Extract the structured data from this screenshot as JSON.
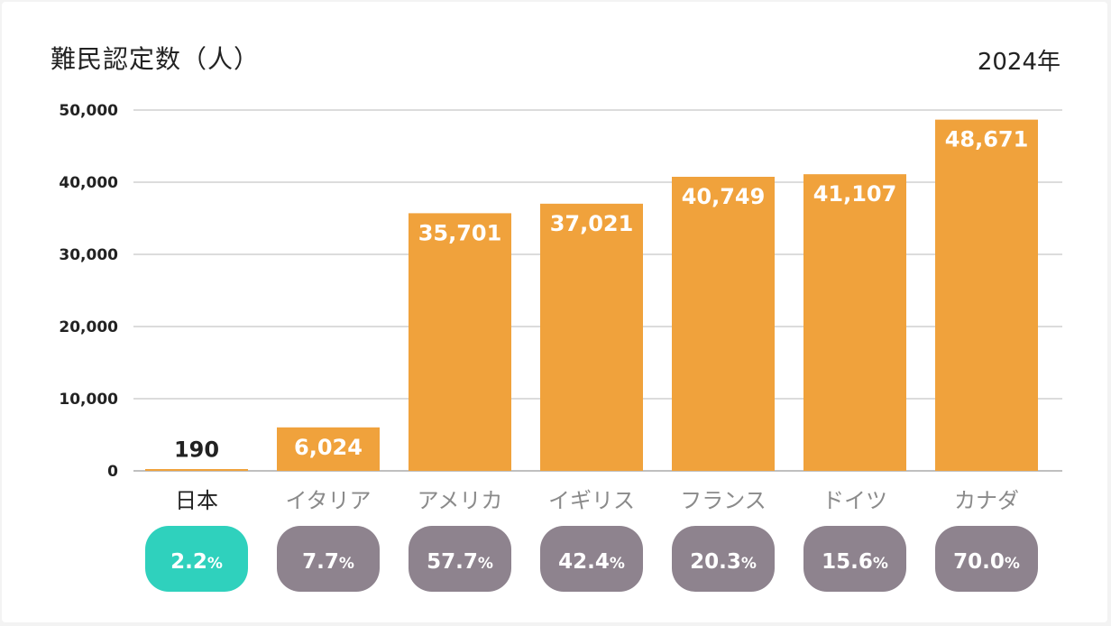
{
  "title": "難民認定数（人）",
  "year": "2024年",
  "colors": {
    "bar": "#f0a23c",
    "badge_highlight": "#2fd1bd",
    "badge_default": "#8e838e",
    "grid": "#c8c8c8"
  },
  "chart_data": {
    "type": "bar",
    "title": "難民認定数（人）",
    "categories": [
      "日本",
      "イタリア",
      "アメリカ",
      "イギリス",
      "フランス",
      "ドイツ",
      "カナダ"
    ],
    "values": [
      190,
      6024,
      35701,
      37021,
      40749,
      41107,
      48671
    ],
    "value_labels": [
      "190",
      "6,024",
      "35,701",
      "37,021",
      "40,749",
      "41,107",
      "48,671"
    ],
    "ylim": [
      0,
      50000
    ],
    "yticks": [
      0,
      10000,
      20000,
      30000,
      40000,
      50000
    ],
    "ytick_labels": [
      "0",
      "10,000",
      "20,000",
      "30,000",
      "40,000",
      "50,000"
    ],
    "grid": true,
    "highlight_index": 0,
    "rates": [
      2.2,
      7.7,
      57.7,
      42.4,
      20.3,
      15.6,
      70.0
    ],
    "rate_labels": [
      "2.2",
      "7.7",
      "57.7",
      "42.4",
      "20.3",
      "15.6",
      "70.0"
    ],
    "rate_unit": "%"
  }
}
